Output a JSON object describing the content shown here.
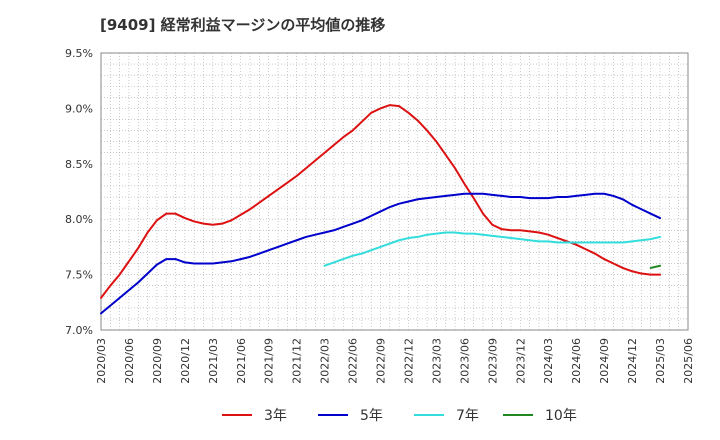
{
  "chart_data": {
    "type": "line",
    "title": "[9409]  経常利益マージンの平均値の推移",
    "x": [
      "2020/03",
      "2020/06",
      "2020/09",
      "2020/12",
      "2021/03",
      "2021/06",
      "2021/09",
      "2021/12",
      "2022/03",
      "2022/06",
      "2022/09",
      "2022/12",
      "2023/03",
      "2023/06",
      "2023/09",
      "2023/12",
      "2024/03",
      "2024/06",
      "2024/09",
      "2024/12",
      "2025/03",
      "2025/06"
    ],
    "yticks": [
      "7.0%",
      "7.5%",
      "8.0%",
      "8.5%",
      "9.0%",
      "9.5%"
    ],
    "ylim": [
      7.0,
      9.5
    ],
    "grid": true,
    "legend_position": "bottom",
    "series": [
      {
        "name": "3年",
        "color": "#dd1111",
        "values": [
          [
            "2020/03",
            7.29
          ],
          [
            "2020/04",
            7.4
          ],
          [
            "2020/05",
            7.5
          ],
          [
            "2020/06",
            7.62
          ],
          [
            "2020/07",
            7.74
          ],
          [
            "2020/08",
            7.88
          ],
          [
            "2020/09",
            7.99
          ],
          [
            "2020/10",
            8.05
          ],
          [
            "2020/11",
            8.05
          ],
          [
            "2020/12",
            8.01
          ],
          [
            "2021/01",
            7.98
          ],
          [
            "2021/02",
            7.96
          ],
          [
            "2021/03",
            7.95
          ],
          [
            "2021/04",
            7.96
          ],
          [
            "2021/05",
            7.99
          ],
          [
            "2021/06",
            8.04
          ],
          [
            "2021/07",
            8.09
          ],
          [
            "2021/08",
            8.15
          ],
          [
            "2021/09",
            8.21
          ],
          [
            "2021/10",
            8.27
          ],
          [
            "2021/11",
            8.33
          ],
          [
            "2021/12",
            8.39
          ],
          [
            "2022/01",
            8.46
          ],
          [
            "2022/02",
            8.53
          ],
          [
            "2022/03",
            8.6
          ],
          [
            "2022/04",
            8.67
          ],
          [
            "2022/05",
            8.74
          ],
          [
            "2022/06",
            8.8
          ],
          [
            "2022/07",
            8.88
          ],
          [
            "2022/08",
            8.96
          ],
          [
            "2022/09",
            9.0
          ],
          [
            "2022/10",
            9.03
          ],
          [
            "2022/11",
            9.02
          ],
          [
            "2022/12",
            8.96
          ],
          [
            "2023/01",
            8.89
          ],
          [
            "2023/02",
            8.8
          ],
          [
            "2023/03",
            8.7
          ],
          [
            "2023/04",
            8.58
          ],
          [
            "2023/05",
            8.46
          ],
          [
            "2023/06",
            8.32
          ],
          [
            "2023/07",
            8.19
          ],
          [
            "2023/08",
            8.05
          ],
          [
            "2023/09",
            7.95
          ],
          [
            "2023/10",
            7.91
          ],
          [
            "2023/11",
            7.9
          ],
          [
            "2023/12",
            7.9
          ],
          [
            "2024/01",
            7.89
          ],
          [
            "2024/02",
            7.88
          ],
          [
            "2024/03",
            7.86
          ],
          [
            "2024/04",
            7.83
          ],
          [
            "2024/05",
            7.8
          ],
          [
            "2024/06",
            7.77
          ],
          [
            "2024/07",
            7.73
          ],
          [
            "2024/08",
            7.69
          ],
          [
            "2024/09",
            7.64
          ],
          [
            "2024/10",
            7.6
          ],
          [
            "2024/11",
            7.56
          ],
          [
            "2024/12",
            7.53
          ],
          [
            "2025/01",
            7.51
          ],
          [
            "2025/02",
            7.5
          ],
          [
            "2025/03",
            7.5
          ]
        ]
      },
      {
        "name": "5年",
        "color": "#0000cc",
        "values": [
          [
            "2020/03",
            7.15
          ],
          [
            "2020/04",
            7.22
          ],
          [
            "2020/05",
            7.29
          ],
          [
            "2020/06",
            7.36
          ],
          [
            "2020/07",
            7.43
          ],
          [
            "2020/08",
            7.51
          ],
          [
            "2020/09",
            7.59
          ],
          [
            "2020/10",
            7.64
          ],
          [
            "2020/11",
            7.64
          ],
          [
            "2020/12",
            7.61
          ],
          [
            "2021/01",
            7.6
          ],
          [
            "2021/02",
            7.6
          ],
          [
            "2021/03",
            7.6
          ],
          [
            "2021/04",
            7.61
          ],
          [
            "2021/05",
            7.62
          ],
          [
            "2021/06",
            7.64
          ],
          [
            "2021/07",
            7.66
          ],
          [
            "2021/08",
            7.69
          ],
          [
            "2021/09",
            7.72
          ],
          [
            "2021/10",
            7.75
          ],
          [
            "2021/11",
            7.78
          ],
          [
            "2021/12",
            7.81
          ],
          [
            "2022/01",
            7.84
          ],
          [
            "2022/02",
            7.86
          ],
          [
            "2022/03",
            7.88
          ],
          [
            "2022/04",
            7.9
          ],
          [
            "2022/05",
            7.93
          ],
          [
            "2022/06",
            7.96
          ],
          [
            "2022/07",
            7.99
          ],
          [
            "2022/08",
            8.03
          ],
          [
            "2022/09",
            8.07
          ],
          [
            "2022/10",
            8.11
          ],
          [
            "2022/11",
            8.14
          ],
          [
            "2022/12",
            8.16
          ],
          [
            "2023/01",
            8.18
          ],
          [
            "2023/02",
            8.19
          ],
          [
            "2023/03",
            8.2
          ],
          [
            "2023/04",
            8.21
          ],
          [
            "2023/05",
            8.22
          ],
          [
            "2023/06",
            8.23
          ],
          [
            "2023/07",
            8.23
          ],
          [
            "2023/08",
            8.23
          ],
          [
            "2023/09",
            8.22
          ],
          [
            "2023/10",
            8.21
          ],
          [
            "2023/11",
            8.2
          ],
          [
            "2023/12",
            8.2
          ],
          [
            "2024/01",
            8.19
          ],
          [
            "2024/02",
            8.19
          ],
          [
            "2024/03",
            8.19
          ],
          [
            "2024/04",
            8.2
          ],
          [
            "2024/05",
            8.2
          ],
          [
            "2024/06",
            8.21
          ],
          [
            "2024/07",
            8.22
          ],
          [
            "2024/08",
            8.23
          ],
          [
            "2024/09",
            8.23
          ],
          [
            "2024/10",
            8.21
          ],
          [
            "2024/11",
            8.18
          ],
          [
            "2024/12",
            8.13
          ],
          [
            "2025/01",
            8.09
          ],
          [
            "2025/02",
            8.05
          ],
          [
            "2025/03",
            8.01
          ]
        ]
      },
      {
        "name": "7年",
        "color": "#33dddd",
        "values": [
          [
            "2022/03",
            7.58
          ],
          [
            "2022/04",
            7.61
          ],
          [
            "2022/05",
            7.64
          ],
          [
            "2022/06",
            7.67
          ],
          [
            "2022/07",
            7.69
          ],
          [
            "2022/08",
            7.72
          ],
          [
            "2022/09",
            7.75
          ],
          [
            "2022/10",
            7.78
          ],
          [
            "2022/11",
            7.81
          ],
          [
            "2022/12",
            7.83
          ],
          [
            "2023/01",
            7.84
          ],
          [
            "2023/02",
            7.86
          ],
          [
            "2023/03",
            7.87
          ],
          [
            "2023/04",
            7.88
          ],
          [
            "2023/05",
            7.88
          ],
          [
            "2023/06",
            7.87
          ],
          [
            "2023/07",
            7.87
          ],
          [
            "2023/08",
            7.86
          ],
          [
            "2023/09",
            7.85
          ],
          [
            "2023/10",
            7.84
          ],
          [
            "2023/11",
            7.83
          ],
          [
            "2023/12",
            7.82
          ],
          [
            "2024/01",
            7.81
          ],
          [
            "2024/02",
            7.8
          ],
          [
            "2024/03",
            7.8
          ],
          [
            "2024/04",
            7.79
          ],
          [
            "2024/05",
            7.79
          ],
          [
            "2024/06",
            7.79
          ],
          [
            "2024/07",
            7.79
          ],
          [
            "2024/08",
            7.79
          ],
          [
            "2024/09",
            7.79
          ],
          [
            "2024/10",
            7.79
          ],
          [
            "2024/11",
            7.79
          ],
          [
            "2024/12",
            7.8
          ],
          [
            "2025/01",
            7.81
          ],
          [
            "2025/02",
            7.82
          ],
          [
            "2025/03",
            7.84
          ]
        ]
      },
      {
        "name": "10年",
        "color": "#228822",
        "values": [
          [
            "2025/02",
            7.56
          ],
          [
            "2025/03",
            7.58
          ]
        ]
      }
    ]
  }
}
